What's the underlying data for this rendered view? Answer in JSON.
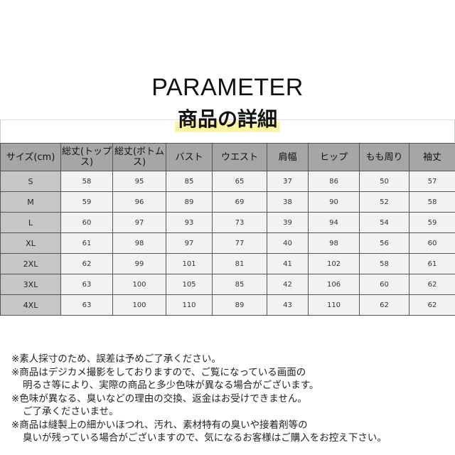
{
  "title": "PARAMETER",
  "subtitle": "商品の詳細",
  "highlight_color": "#fbf3a8",
  "table": {
    "headers": [
      "サイズ(cm)",
      "総丈(トップス)",
      "総丈(ボトムス)",
      "バスト",
      "ウエスト",
      "肩幅",
      "ヒップ",
      "もも周り",
      "袖丈"
    ],
    "rows": [
      [
        "S",
        "58",
        "95",
        "85",
        "65",
        "37",
        "86",
        "50",
        "57"
      ],
      [
        "M",
        "59",
        "96",
        "89",
        "69",
        "38",
        "90",
        "52",
        "58"
      ],
      [
        "L",
        "60",
        "97",
        "93",
        "73",
        "39",
        "94",
        "54",
        "59"
      ],
      [
        "XL",
        "61",
        "98",
        "97",
        "77",
        "40",
        "98",
        "56",
        "60"
      ],
      [
        "2XL",
        "62",
        "99",
        "101",
        "81",
        "41",
        "102",
        "58",
        "61"
      ],
      [
        "3XL",
        "63",
        "100",
        "105",
        "85",
        "42",
        "106",
        "60",
        "62"
      ],
      [
        "4XL",
        "63",
        "100",
        "110",
        "89",
        "43",
        "110",
        "62",
        "62"
      ]
    ]
  },
  "notes": [
    "※素人採寸のため、誤差は予めご了承ください。",
    "※商品はデジカメ撮影をしておりますので、ご覧になっている画面の",
    "明るさ等により、実際の商品と多少色味が異なる場合がございます。",
    "※色味が異なる、臭いなどの理由の交換、返金はお受けできません。",
    "ご了承くださいませ。",
    "※商品は縫製上の細かいほつれ、汚れ、素材特有の臭いや接着剤等の",
    "臭いが残っている場合がございますので、気になるお客様はご購入をお控え下さい。"
  ]
}
